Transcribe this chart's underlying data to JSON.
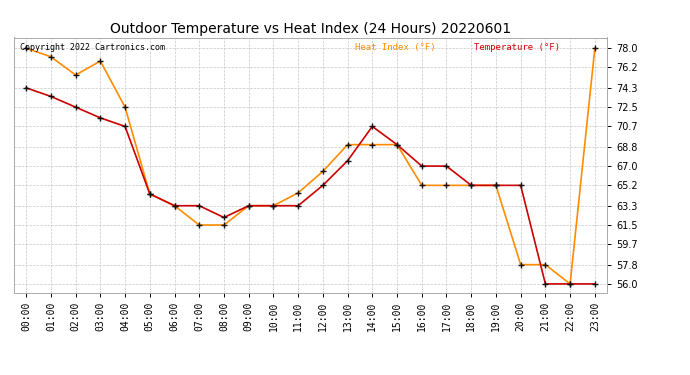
{
  "title": "Outdoor Temperature vs Heat Index (24 Hours) 20220601",
  "copyright": "Copyright 2022 Cartronics.com",
  "legend_heat": "Heat Index (°F)",
  "legend_temp": "Temperature (°F)",
  "hours": [
    "00:00",
    "01:00",
    "02:00",
    "03:00",
    "04:00",
    "05:00",
    "06:00",
    "07:00",
    "08:00",
    "09:00",
    "10:00",
    "11:00",
    "12:00",
    "13:00",
    "14:00",
    "15:00",
    "16:00",
    "17:00",
    "18:00",
    "19:00",
    "20:00",
    "21:00",
    "22:00",
    "23:00"
  ],
  "temperature": [
    74.3,
    73.5,
    72.5,
    71.5,
    70.7,
    64.4,
    63.3,
    63.3,
    62.2,
    63.3,
    63.3,
    63.3,
    65.2,
    67.5,
    70.7,
    69.0,
    67.0,
    67.0,
    65.2,
    65.2,
    65.2,
    56.0,
    56.0,
    56.0
  ],
  "heat_index": [
    78.0,
    77.2,
    75.5,
    76.8,
    72.5,
    64.4,
    63.3,
    61.5,
    61.5,
    63.3,
    63.3,
    64.5,
    66.5,
    69.0,
    69.0,
    69.0,
    65.2,
    65.2,
    65.2,
    65.2,
    57.8,
    57.8,
    56.0,
    78.0
  ],
  "ylim_min": 55.2,
  "ylim_max": 79.0,
  "yticks": [
    56.0,
    57.8,
    59.7,
    61.5,
    63.3,
    65.2,
    67.0,
    68.8,
    70.7,
    72.5,
    74.3,
    76.2,
    78.0
  ],
  "temp_color": "#cc0000",
  "heat_color": "#ff8c00",
  "marker_color": "#111111",
  "bg_color": "#ffffff",
  "grid_color": "#c8c8c8",
  "title_fontsize": 10,
  "tick_fontsize": 7,
  "copyright_color": "#000000",
  "legend_heat_color": "#ff8c00",
  "legend_temp_color": "#cc0000",
  "fig_width": 6.9,
  "fig_height": 3.75,
  "dpi": 100
}
